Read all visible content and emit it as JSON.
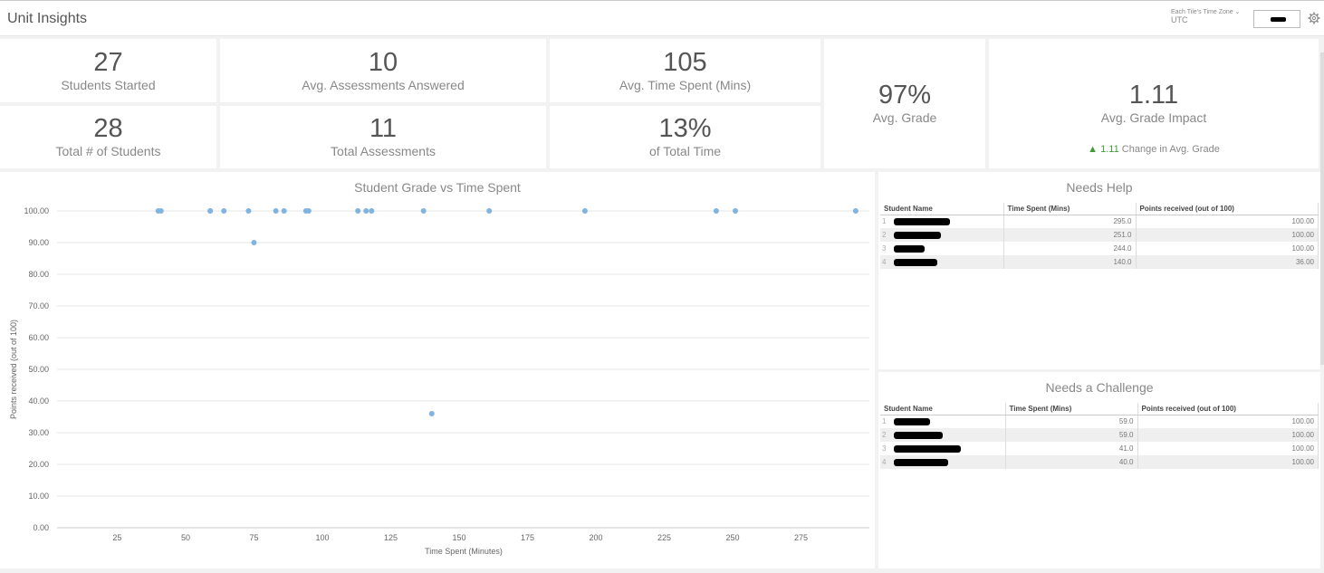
{
  "header": {
    "title": "Unit Insights",
    "timezone_label": "Each Tile's Time Zone",
    "timezone_value": "UTC"
  },
  "tiles": {
    "students_started": {
      "value": "27",
      "label": "Students Started"
    },
    "total_students": {
      "value": "28",
      "label": "Total # of Students"
    },
    "avg_assessments": {
      "value": "10",
      "label": "Avg. Assessments Answered"
    },
    "total_assessments": {
      "value": "11",
      "label": "Total Assessments"
    },
    "avg_time": {
      "value": "105",
      "label": "Avg. Time Spent (Mins)"
    },
    "pct_time": {
      "value": "13%",
      "label": "of Total Time"
    },
    "avg_grade": {
      "value": "97%",
      "label": "Avg. Grade"
    },
    "grade_impact": {
      "value": "1.11",
      "label": "Avg. Grade Impact",
      "change_value": "1.11",
      "change_label": "Change in Avg. Grade"
    }
  },
  "chart_data": {
    "type": "scatter",
    "title": "Student Grade vs Time Spent",
    "xlabel": "Time Spent (Minutes)",
    "ylabel": "Points received (out of 100)",
    "xlim": [
      3,
      300
    ],
    "ylim": [
      0,
      100
    ],
    "xticks": [
      25,
      50,
      75,
      100,
      125,
      150,
      175,
      200,
      225,
      250,
      275
    ],
    "yticks": [
      "0.00",
      "10.00",
      "20.00",
      "30.00",
      "40.00",
      "50.00",
      "60.00",
      "70.00",
      "80.00",
      "90.00",
      "100.00"
    ],
    "color": "#7fb3e0",
    "points": [
      {
        "x": 40,
        "y": 100
      },
      {
        "x": 41,
        "y": 100
      },
      {
        "x": 59,
        "y": 100
      },
      {
        "x": 59,
        "y": 100
      },
      {
        "x": 64,
        "y": 100
      },
      {
        "x": 73,
        "y": 100
      },
      {
        "x": 75,
        "y": 90
      },
      {
        "x": 83,
        "y": 100
      },
      {
        "x": 86,
        "y": 100
      },
      {
        "x": 94,
        "y": 100
      },
      {
        "x": 95,
        "y": 100
      },
      {
        "x": 113,
        "y": 100
      },
      {
        "x": 116,
        "y": 100
      },
      {
        "x": 118,
        "y": 100
      },
      {
        "x": 137,
        "y": 100
      },
      {
        "x": 140,
        "y": 36
      },
      {
        "x": 161,
        "y": 100
      },
      {
        "x": 196,
        "y": 100
      },
      {
        "x": 244,
        "y": 100
      },
      {
        "x": 251,
        "y": 100
      },
      {
        "x": 295,
        "y": 100
      }
    ]
  },
  "needs_help": {
    "title": "Needs Help",
    "columns": [
      "Student Name",
      "Time Spent (Mins)",
      "Points received (out of 100)"
    ],
    "rows": [
      {
        "idx": "1",
        "time": "295.0",
        "points": "100.00"
      },
      {
        "idx": "2",
        "time": "251.0",
        "points": "100.00"
      },
      {
        "idx": "3",
        "time": "244.0",
        "points": "100.00"
      },
      {
        "idx": "4",
        "time": "140.0",
        "points": "36.00"
      }
    ]
  },
  "needs_challenge": {
    "title": "Needs a Challenge",
    "columns": [
      "Student Name",
      "Time Spent (Mins)",
      "Points received (out of 100)"
    ],
    "rows": [
      {
        "idx": "1",
        "time": "59.0",
        "points": "100.00"
      },
      {
        "idx": "2",
        "time": "59.0",
        "points": "100.00"
      },
      {
        "idx": "3",
        "time": "41.0",
        "points": "100.00"
      },
      {
        "idx": "4",
        "time": "40.0",
        "points": "100.00"
      }
    ]
  }
}
